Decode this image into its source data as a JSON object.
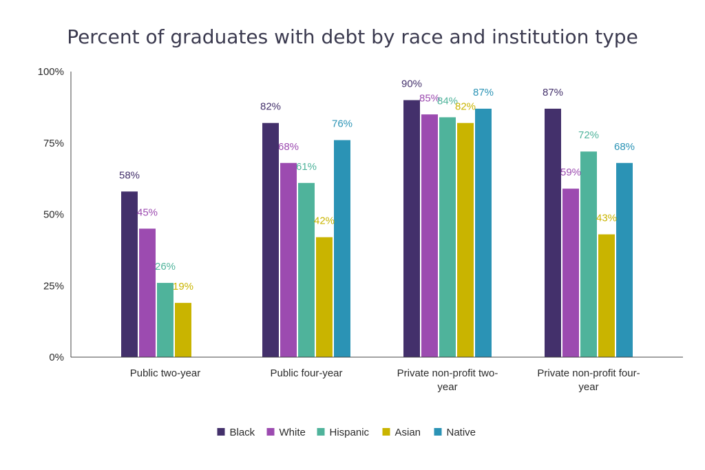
{
  "chart_data": {
    "type": "bar",
    "title": "Percent of graduates with debt by race and institution type",
    "xlabel": "",
    "ylabel": "",
    "ylim": [
      0,
      100
    ],
    "yticks": [
      "0%",
      "25%",
      "50%",
      "75%",
      "100%"
    ],
    "ytick_values": [
      0,
      25,
      50,
      75,
      100
    ],
    "categories": [
      [
        "Public two-year"
      ],
      [
        "Public four-year"
      ],
      [
        "Private non-profit two-",
        "year"
      ],
      [
        "Private non-profit four-",
        "year"
      ]
    ],
    "series": [
      {
        "name": "Black",
        "color": "#43306b",
        "values": [
          58,
          82,
          90,
          87
        ],
        "labels": [
          "58%",
          "82%",
          "90%",
          "87%"
        ]
      },
      {
        "name": "White",
        "color": "#9c4bb0",
        "values": [
          45,
          68,
          85,
          59
        ],
        "labels": [
          "45%",
          "68%",
          "85%",
          "59%"
        ]
      },
      {
        "name": "Hispanic",
        "color": "#4fb39b",
        "values": [
          26,
          61,
          84,
          72
        ],
        "labels": [
          "26%",
          "61%",
          "84%",
          "72%"
        ]
      },
      {
        "name": "Asian",
        "color": "#c9b400",
        "values": [
          19,
          42,
          82,
          43
        ],
        "labels": [
          "19%",
          "42%",
          "82%",
          "43%"
        ]
      },
      {
        "name": "Native",
        "color": "#2b93b5",
        "values": [
          null,
          76,
          87,
          68
        ],
        "labels": [
          null,
          "76%",
          "87%",
          "68%"
        ]
      }
    ],
    "label_colors": {
      "Black": "#43306b",
      "White": "#9c4bb0",
      "Hispanic": "#4fb39b",
      "Asian": "#c9b400",
      "Native": "#2b93b5"
    },
    "grid": false,
    "legend": "bottom-center"
  }
}
